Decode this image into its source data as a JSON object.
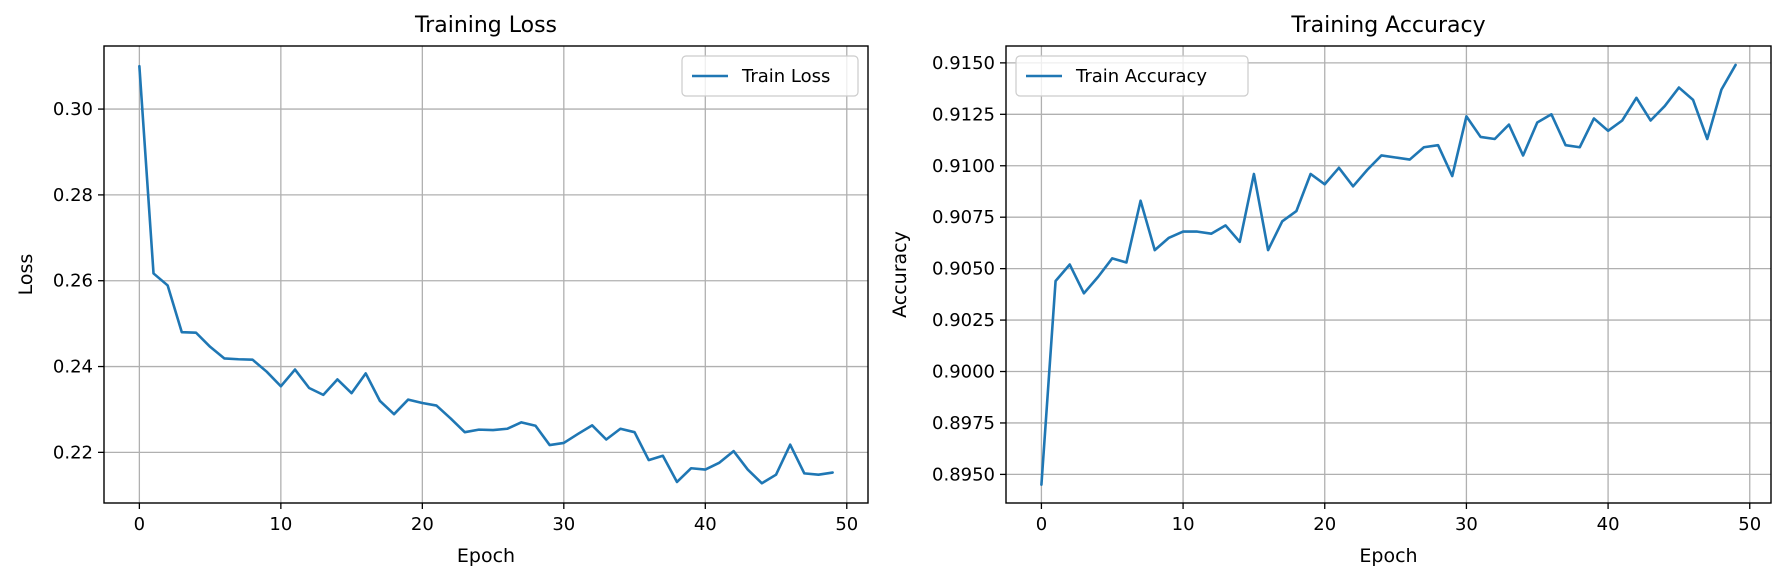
{
  "chart_data": [
    {
      "type": "line",
      "title": "Training Loss",
      "xlabel": "Epoch",
      "ylabel": "Loss",
      "xlim": [
        -2.5,
        51.5
      ],
      "ylim": [
        0.2082,
        0.3147
      ],
      "xticks": [
        0,
        10,
        20,
        30,
        40,
        50
      ],
      "yticks": [
        0.22,
        0.24,
        0.26,
        0.28,
        0.3
      ],
      "ytick_labels": [
        "0.22",
        "0.24",
        "0.26",
        "0.28",
        "0.30"
      ],
      "grid": true,
      "legend_position": "upper right",
      "series": [
        {
          "name": "Train Loss",
          "color": "#1f77b4",
          "x": [
            0,
            1,
            2,
            3,
            4,
            5,
            6,
            7,
            8,
            9,
            10,
            11,
            12,
            13,
            14,
            15,
            16,
            17,
            18,
            19,
            20,
            21,
            22,
            23,
            24,
            25,
            26,
            27,
            28,
            29,
            30,
            31,
            32,
            33,
            34,
            35,
            36,
            37,
            38,
            39,
            40,
            41,
            42,
            43,
            44,
            45,
            46,
            47,
            48,
            49
          ],
          "y": [
            0.31,
            0.2617,
            0.2589,
            0.248,
            0.2479,
            0.2446,
            0.2419,
            0.2417,
            0.2416,
            0.2388,
            0.2354,
            0.2393,
            0.235,
            0.2334,
            0.237,
            0.2338,
            0.2384,
            0.232,
            0.2289,
            0.2323,
            0.2315,
            0.2309,
            0.2279,
            0.2247,
            0.2253,
            0.2252,
            0.2255,
            0.227,
            0.2262,
            0.2217,
            0.2222,
            0.2243,
            0.2263,
            0.223,
            0.2255,
            0.2247,
            0.2182,
            0.2192,
            0.2131,
            0.2163,
            0.216,
            0.2176,
            0.2203,
            0.216,
            0.2128,
            0.2148,
            0.2218,
            0.2151,
            0.2148,
            0.2153
          ]
        }
      ]
    },
    {
      "type": "line",
      "title": "Training Accuracy",
      "xlabel": "Epoch",
      "ylabel": "Accuracy",
      "xlim": [
        -2.5,
        51.5
      ],
      "ylim": [
        0.89361,
        0.91582
      ],
      "xticks": [
        0,
        10,
        20,
        30,
        40,
        50
      ],
      "yticks": [
        0.895,
        0.8975,
        0.9,
        0.9025,
        0.905,
        0.9075,
        0.91,
        0.9125,
        0.915
      ],
      "ytick_labels": [
        "0.8950",
        "0.8975",
        "0.9000",
        "0.9025",
        "0.9050",
        "0.9075",
        "0.9100",
        "0.9125",
        "0.9150"
      ],
      "grid": true,
      "legend_position": "upper left",
      "series": [
        {
          "name": "Train Accuracy",
          "color": "#1f77b4",
          "x": [
            0,
            1,
            2,
            3,
            4,
            5,
            6,
            7,
            8,
            9,
            10,
            11,
            12,
            13,
            14,
            15,
            16,
            17,
            18,
            19,
            20,
            21,
            22,
            23,
            24,
            25,
            26,
            27,
            28,
            29,
            30,
            31,
            32,
            33,
            34,
            35,
            36,
            37,
            38,
            39,
            40,
            41,
            42,
            43,
            44,
            45,
            46,
            47,
            48,
            49
          ],
          "y": [
            0.8945,
            0.9044,
            0.9052,
            0.9038,
            0.9046,
            0.9055,
            0.9053,
            0.9083,
            0.9059,
            0.9065,
            0.9068,
            0.9068,
            0.9067,
            0.9071,
            0.9063,
            0.9096,
            0.9059,
            0.9073,
            0.9078,
            0.9096,
            0.9091,
            0.9099,
            0.909,
            0.9098,
            0.9105,
            0.9104,
            0.9103,
            0.9109,
            0.911,
            0.9095,
            0.9124,
            0.9114,
            0.9113,
            0.912,
            0.9105,
            0.9121,
            0.9125,
            0.911,
            0.9109,
            0.9123,
            0.9117,
            0.9122,
            0.9133,
            0.9122,
            0.9129,
            0.9138,
            0.9132,
            0.9113,
            0.9137,
            0.9149
          ]
        }
      ]
    }
  ]
}
